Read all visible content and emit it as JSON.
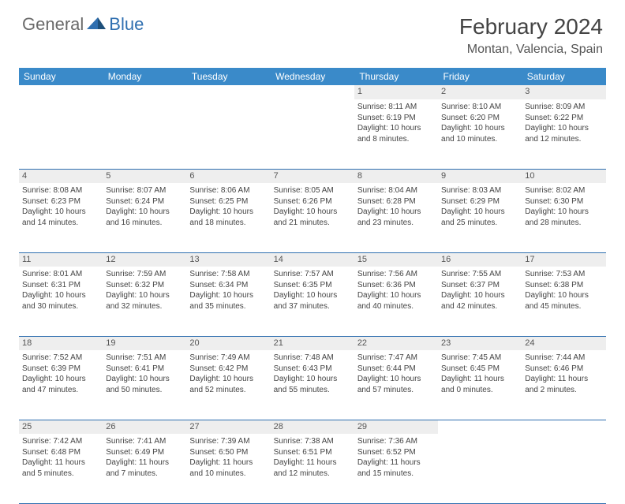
{
  "brand": {
    "part1": "General",
    "part2": "Blue"
  },
  "title": "February 2024",
  "location": "Montan, Valencia, Spain",
  "colors": {
    "header_bg": "#3a8ac9",
    "header_text": "#ffffff",
    "daynum_bg": "#eeeeee",
    "row_divider": "#2f6fb0",
    "text": "#444444",
    "brand_gray": "#6a6a6a",
    "brand_blue": "#2f6fb0"
  },
  "weekdays": [
    "Sunday",
    "Monday",
    "Tuesday",
    "Wednesday",
    "Thursday",
    "Friday",
    "Saturday"
  ],
  "weeks": [
    [
      null,
      null,
      null,
      null,
      {
        "n": "1",
        "sr": "Sunrise: 8:11 AM",
        "ss": "Sunset: 6:19 PM",
        "dl1": "Daylight: 10 hours",
        "dl2": "and 8 minutes."
      },
      {
        "n": "2",
        "sr": "Sunrise: 8:10 AM",
        "ss": "Sunset: 6:20 PM",
        "dl1": "Daylight: 10 hours",
        "dl2": "and 10 minutes."
      },
      {
        "n": "3",
        "sr": "Sunrise: 8:09 AM",
        "ss": "Sunset: 6:22 PM",
        "dl1": "Daylight: 10 hours",
        "dl2": "and 12 minutes."
      }
    ],
    [
      {
        "n": "4",
        "sr": "Sunrise: 8:08 AM",
        "ss": "Sunset: 6:23 PM",
        "dl1": "Daylight: 10 hours",
        "dl2": "and 14 minutes."
      },
      {
        "n": "5",
        "sr": "Sunrise: 8:07 AM",
        "ss": "Sunset: 6:24 PM",
        "dl1": "Daylight: 10 hours",
        "dl2": "and 16 minutes."
      },
      {
        "n": "6",
        "sr": "Sunrise: 8:06 AM",
        "ss": "Sunset: 6:25 PM",
        "dl1": "Daylight: 10 hours",
        "dl2": "and 18 minutes."
      },
      {
        "n": "7",
        "sr": "Sunrise: 8:05 AM",
        "ss": "Sunset: 6:26 PM",
        "dl1": "Daylight: 10 hours",
        "dl2": "and 21 minutes."
      },
      {
        "n": "8",
        "sr": "Sunrise: 8:04 AM",
        "ss": "Sunset: 6:28 PM",
        "dl1": "Daylight: 10 hours",
        "dl2": "and 23 minutes."
      },
      {
        "n": "9",
        "sr": "Sunrise: 8:03 AM",
        "ss": "Sunset: 6:29 PM",
        "dl1": "Daylight: 10 hours",
        "dl2": "and 25 minutes."
      },
      {
        "n": "10",
        "sr": "Sunrise: 8:02 AM",
        "ss": "Sunset: 6:30 PM",
        "dl1": "Daylight: 10 hours",
        "dl2": "and 28 minutes."
      }
    ],
    [
      {
        "n": "11",
        "sr": "Sunrise: 8:01 AM",
        "ss": "Sunset: 6:31 PM",
        "dl1": "Daylight: 10 hours",
        "dl2": "and 30 minutes."
      },
      {
        "n": "12",
        "sr": "Sunrise: 7:59 AM",
        "ss": "Sunset: 6:32 PM",
        "dl1": "Daylight: 10 hours",
        "dl2": "and 32 minutes."
      },
      {
        "n": "13",
        "sr": "Sunrise: 7:58 AM",
        "ss": "Sunset: 6:34 PM",
        "dl1": "Daylight: 10 hours",
        "dl2": "and 35 minutes."
      },
      {
        "n": "14",
        "sr": "Sunrise: 7:57 AM",
        "ss": "Sunset: 6:35 PM",
        "dl1": "Daylight: 10 hours",
        "dl2": "and 37 minutes."
      },
      {
        "n": "15",
        "sr": "Sunrise: 7:56 AM",
        "ss": "Sunset: 6:36 PM",
        "dl1": "Daylight: 10 hours",
        "dl2": "and 40 minutes."
      },
      {
        "n": "16",
        "sr": "Sunrise: 7:55 AM",
        "ss": "Sunset: 6:37 PM",
        "dl1": "Daylight: 10 hours",
        "dl2": "and 42 minutes."
      },
      {
        "n": "17",
        "sr": "Sunrise: 7:53 AM",
        "ss": "Sunset: 6:38 PM",
        "dl1": "Daylight: 10 hours",
        "dl2": "and 45 minutes."
      }
    ],
    [
      {
        "n": "18",
        "sr": "Sunrise: 7:52 AM",
        "ss": "Sunset: 6:39 PM",
        "dl1": "Daylight: 10 hours",
        "dl2": "and 47 minutes."
      },
      {
        "n": "19",
        "sr": "Sunrise: 7:51 AM",
        "ss": "Sunset: 6:41 PM",
        "dl1": "Daylight: 10 hours",
        "dl2": "and 50 minutes."
      },
      {
        "n": "20",
        "sr": "Sunrise: 7:49 AM",
        "ss": "Sunset: 6:42 PM",
        "dl1": "Daylight: 10 hours",
        "dl2": "and 52 minutes."
      },
      {
        "n": "21",
        "sr": "Sunrise: 7:48 AM",
        "ss": "Sunset: 6:43 PM",
        "dl1": "Daylight: 10 hours",
        "dl2": "and 55 minutes."
      },
      {
        "n": "22",
        "sr": "Sunrise: 7:47 AM",
        "ss": "Sunset: 6:44 PM",
        "dl1": "Daylight: 10 hours",
        "dl2": "and 57 minutes."
      },
      {
        "n": "23",
        "sr": "Sunrise: 7:45 AM",
        "ss": "Sunset: 6:45 PM",
        "dl1": "Daylight: 11 hours",
        "dl2": "and 0 minutes."
      },
      {
        "n": "24",
        "sr": "Sunrise: 7:44 AM",
        "ss": "Sunset: 6:46 PM",
        "dl1": "Daylight: 11 hours",
        "dl2": "and 2 minutes."
      }
    ],
    [
      {
        "n": "25",
        "sr": "Sunrise: 7:42 AM",
        "ss": "Sunset: 6:48 PM",
        "dl1": "Daylight: 11 hours",
        "dl2": "and 5 minutes."
      },
      {
        "n": "26",
        "sr": "Sunrise: 7:41 AM",
        "ss": "Sunset: 6:49 PM",
        "dl1": "Daylight: 11 hours",
        "dl2": "and 7 minutes."
      },
      {
        "n": "27",
        "sr": "Sunrise: 7:39 AM",
        "ss": "Sunset: 6:50 PM",
        "dl1": "Daylight: 11 hours",
        "dl2": "and 10 minutes."
      },
      {
        "n": "28",
        "sr": "Sunrise: 7:38 AM",
        "ss": "Sunset: 6:51 PM",
        "dl1": "Daylight: 11 hours",
        "dl2": "and 12 minutes."
      },
      {
        "n": "29",
        "sr": "Sunrise: 7:36 AM",
        "ss": "Sunset: 6:52 PM",
        "dl1": "Daylight: 11 hours",
        "dl2": "and 15 minutes."
      },
      null,
      null
    ]
  ]
}
